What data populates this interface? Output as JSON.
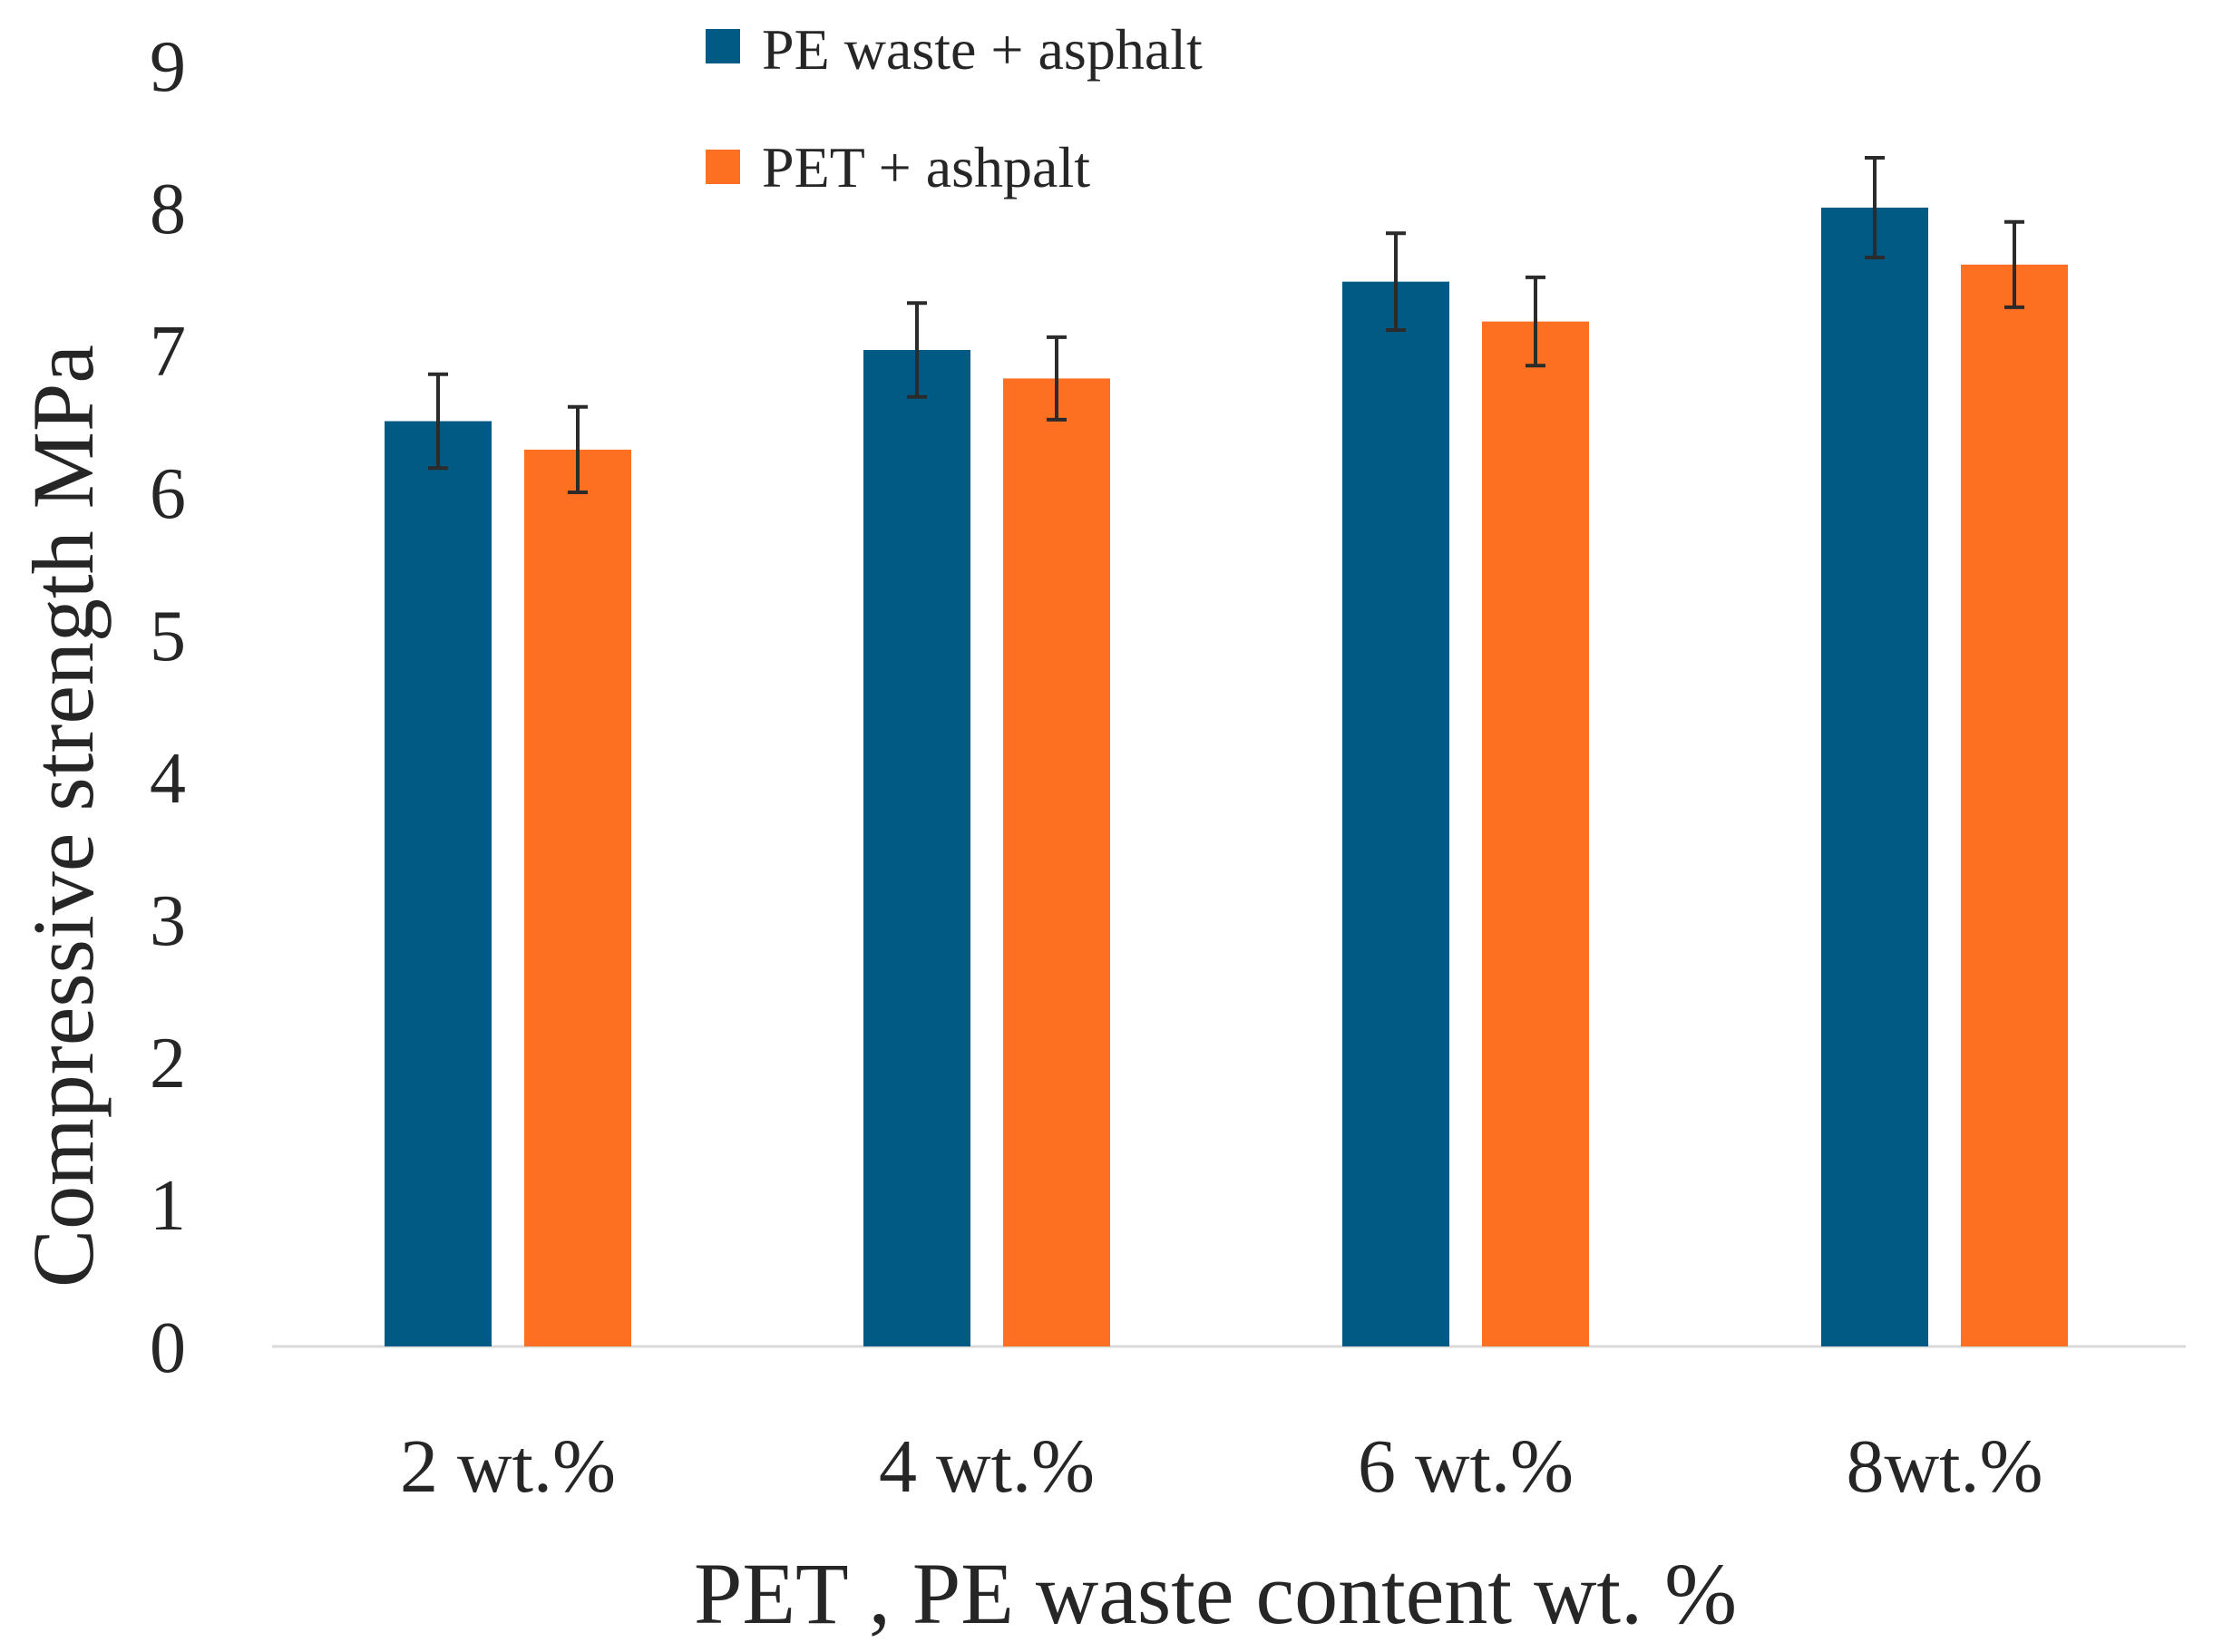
{
  "chart_data": {
    "type": "bar",
    "title": "",
    "xlabel": "PET , PE waste content wt. %",
    "ylabel": "Compressive strength MPa",
    "categories": [
      "2 wt.%",
      "4 wt.%",
      "6 wt.%",
      "8wt.%"
    ],
    "ylim": [
      0,
      9
    ],
    "yticks": [
      "0",
      "1",
      "2",
      "3",
      "4",
      "5",
      "6",
      "7",
      "8",
      "9"
    ],
    "legend_position": "top",
    "series": [
      {
        "name": "PE waste + asphalt",
        "color": "#005a83",
        "values": [
          6.5,
          7.0,
          7.48,
          8.0
        ],
        "errors": [
          0.33,
          0.33,
          0.34,
          0.35
        ]
      },
      {
        "name": "PET + ashpalt",
        "color": "#fd6f21",
        "values": [
          6.3,
          6.8,
          7.2,
          7.6
        ],
        "errors": [
          0.3,
          0.29,
          0.31,
          0.3
        ]
      }
    ],
    "error_bar_color": "#2b2b2b"
  }
}
